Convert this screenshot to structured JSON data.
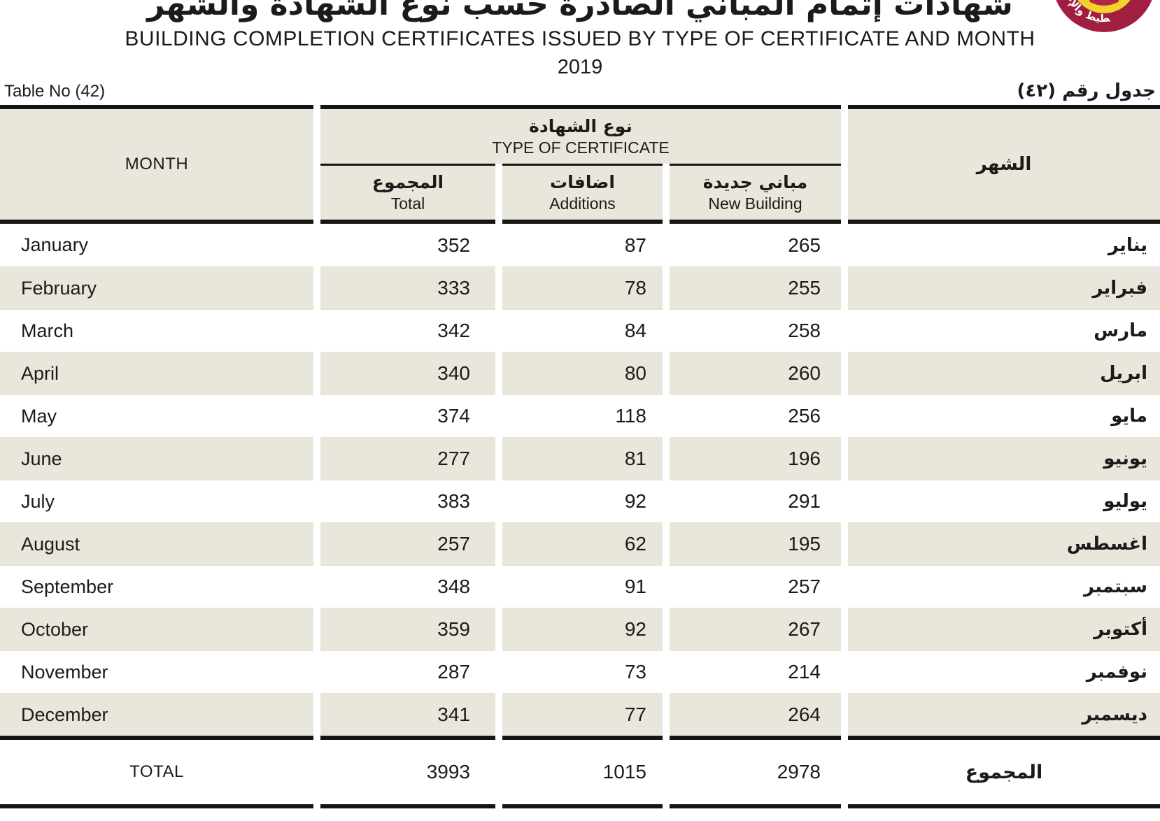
{
  "page": {
    "title_ar": "شهادات إتمام المباني الصادرة حسب نوع الشهادة والشهر",
    "title_en": "BUILDING COMPLETION CERTIFICATES ISSUED BY TYPE OF CERTIFICATE AND MONTH",
    "year": "2019",
    "table_no_en": "Table No (42)",
    "table_no_ar": "جدول رقم (٤٢)"
  },
  "logo": {
    "name": "planning-and-statistics-authority-seal",
    "ring_text_ar": "التخطيط والإحصاء",
    "ring_color": "#A01F41",
    "center_color": "#F3D32B"
  },
  "table": {
    "header": {
      "month_en": "MONTH",
      "type_group_ar": "نوع الشهادة",
      "type_group_en": "TYPE OF CERTIFICATE",
      "total_ar": "المجموع",
      "total_en": "Total",
      "additions_ar": "اضافات",
      "additions_en": "Additions",
      "new_building_ar": "مباني جديدة",
      "new_building_en": "New Building",
      "month_ar": "الشهر"
    },
    "rows": [
      {
        "month_en": "January",
        "total": "352",
        "additions": "87",
        "new_building": "265",
        "month_ar": "يناير"
      },
      {
        "month_en": "February",
        "total": "333",
        "additions": "78",
        "new_building": "255",
        "month_ar": "فبراير"
      },
      {
        "month_en": "March",
        "total": "342",
        "additions": "84",
        "new_building": "258",
        "month_ar": "مارس"
      },
      {
        "month_en": "April",
        "total": "340",
        "additions": "80",
        "new_building": "260",
        "month_ar": "ابريل"
      },
      {
        "month_en": "May",
        "total": "374",
        "additions": "118",
        "new_building": "256",
        "month_ar": "مايو"
      },
      {
        "month_en": "June",
        "total": "277",
        "additions": "81",
        "new_building": "196",
        "month_ar": "يونيو"
      },
      {
        "month_en": "July",
        "total": "383",
        "additions": "92",
        "new_building": "291",
        "month_ar": "يوليو"
      },
      {
        "month_en": "August",
        "total": "257",
        "additions": "62",
        "new_building": "195",
        "month_ar": "اغسطس"
      },
      {
        "month_en": "September",
        "total": "348",
        "additions": "91",
        "new_building": "257",
        "month_ar": "سبتمبر"
      },
      {
        "month_en": "October",
        "total": "359",
        "additions": "92",
        "new_building": "267",
        "month_ar": "أكتوبر"
      },
      {
        "month_en": "November",
        "total": "287",
        "additions": "73",
        "new_building": "214",
        "month_ar": "نوفمبر"
      },
      {
        "month_en": "December",
        "total": "341",
        "additions": "77",
        "new_building": "264",
        "month_ar": "ديسمبر"
      }
    ],
    "total_row": {
      "label_en": "TOTAL",
      "total": "3993",
      "additions": "1015",
      "new_building": "2978",
      "label_ar": "المجموع"
    }
  },
  "colors": {
    "row_beige": "#e9e7dc",
    "rule_black": "#151515"
  }
}
